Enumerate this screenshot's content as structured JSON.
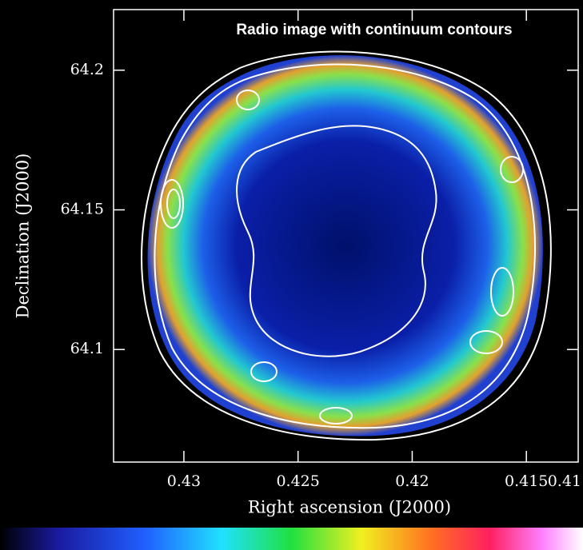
{
  "chart_data": {
    "type": "image",
    "title": "Radio image with continuum contours",
    "x_label": "Right ascension (J2000)",
    "y_label": "Declination (J2000)",
    "xlim": [
      0.43308,
      0.41273
    ],
    "ylim": [
      64.0597,
      64.2217
    ],
    "xticks": [
      0.43,
      0.425,
      0.42,
      0.415,
      0.41
    ],
    "yticks": [
      64.1,
      64.15,
      64.2
    ]
  }
}
